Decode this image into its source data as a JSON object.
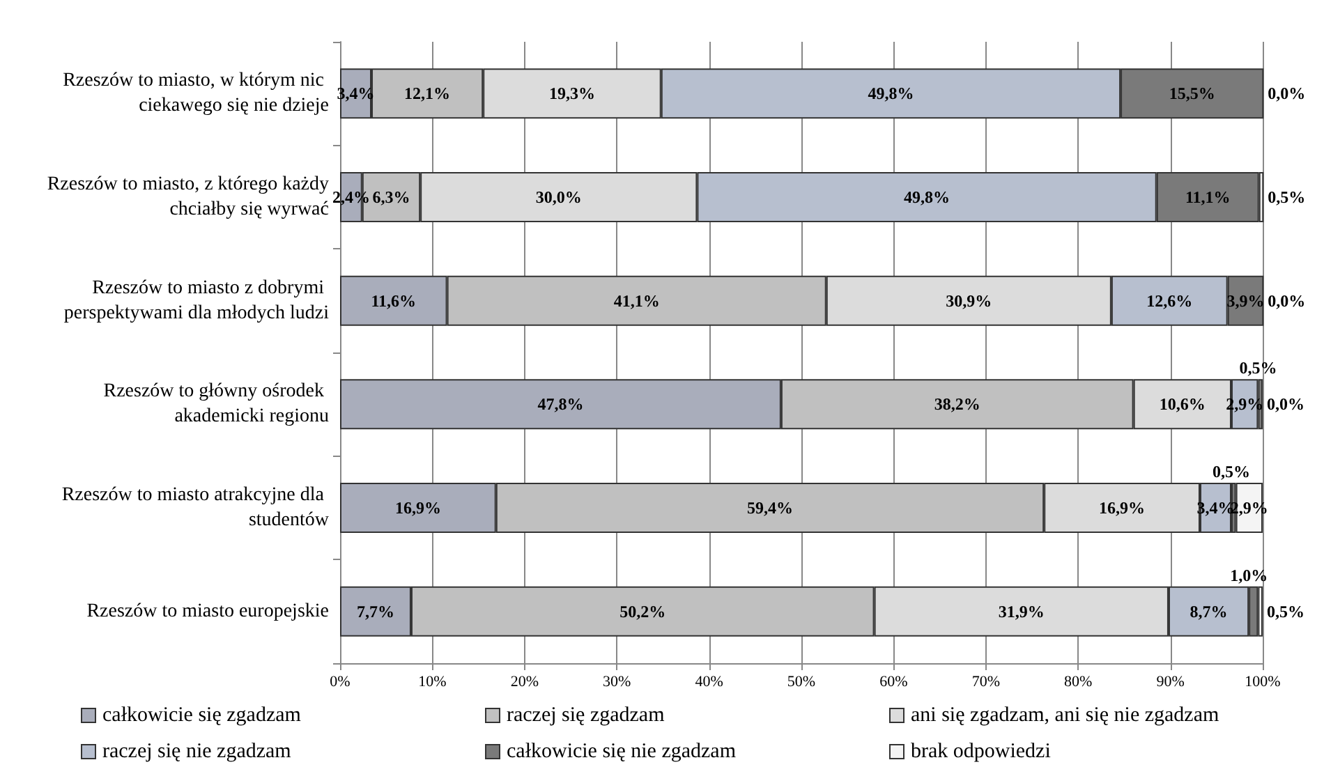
{
  "chart_data": {
    "type": "bar",
    "orientation": "horizontal",
    "stacked": true,
    "categories": [
      "Rzeszów to miasto, w którym nic ciekawego się nie dzieje",
      "Rzeszów to miasto, z którego każdy chciałby się wyrwać",
      "Rzeszów to miasto z dobrymi perspektywami dla młodych ludzi",
      "Rzeszów to główny ośrodek akademicki regionu",
      "Rzeszów to miasto atrakcyjne dla studentów",
      "Rzeszów to miasto europejskie"
    ],
    "series": [
      {
        "name": "całkowicie się zgadzam",
        "color": "#a9adbb",
        "values": [
          3.4,
          2.4,
          11.6,
          47.8,
          16.9,
          7.7
        ],
        "value_labels": [
          "3,4%",
          "2,4%",
          "11,6%",
          "47,8%",
          "16,9%",
          "7,7%"
        ]
      },
      {
        "name": "raczej się zgadzam",
        "color": "#c0c0c0",
        "values": [
          12.1,
          6.3,
          41.1,
          38.2,
          59.4,
          50.2
        ],
        "value_labels": [
          "12,1%",
          "6,3%",
          "41,1%",
          "38,2%",
          "59,4%",
          "50,2%"
        ]
      },
      {
        "name": "ani się zgadzam, ani się nie zgadzam",
        "color": "#dcdcdc",
        "values": [
          19.3,
          30.0,
          30.9,
          10.6,
          16.9,
          31.9
        ],
        "value_labels": [
          "19,3%",
          "30,0%",
          "30,9%",
          "10,6%",
          "16,9%",
          "31,9%"
        ]
      },
      {
        "name": "raczej się nie zgadzam",
        "color": "#b7bfcf",
        "values": [
          49.8,
          49.8,
          12.6,
          2.9,
          3.4,
          8.7
        ],
        "value_labels": [
          "49,8%",
          "49,8%",
          "12,6%",
          "2,9%",
          "3,4%",
          "8,7%"
        ]
      },
      {
        "name": "całkowicie się nie zgadzam",
        "color": "#7a7a7a",
        "values": [
          15.5,
          11.1,
          3.9,
          0.5,
          0.5,
          1.0
        ],
        "value_labels": [
          "15,5%",
          "11,1%",
          "3,9%",
          "0,5%",
          "0,5%",
          "1,0%"
        ]
      },
      {
        "name": "brak odpowiedzi",
        "color": "#f4f4f4",
        "values": [
          0.0,
          0.5,
          0.0,
          0.0,
          2.9,
          0.5
        ],
        "value_labels": [
          "0,0%",
          "0,5%",
          "0,0%",
          "0,0%",
          "2,9%",
          "0,5%"
        ]
      }
    ],
    "xlim": [
      0,
      100
    ],
    "xticks": [
      {
        "value": 0,
        "label": "0%"
      },
      {
        "value": 10,
        "label": "10%"
      },
      {
        "value": 20,
        "label": "20%"
      },
      {
        "value": 30,
        "label": "30%"
      },
      {
        "value": 40,
        "label": "40%"
      },
      {
        "value": 50,
        "label": "50%"
      },
      {
        "value": 60,
        "label": "60%"
      },
      {
        "value": 70,
        "label": "70%"
      },
      {
        "value": 80,
        "label": "80%"
      },
      {
        "value": 90,
        "label": "90%"
      },
      {
        "value": 100,
        "label": "100%"
      }
    ],
    "grid": "x",
    "legend": "bottom"
  }
}
